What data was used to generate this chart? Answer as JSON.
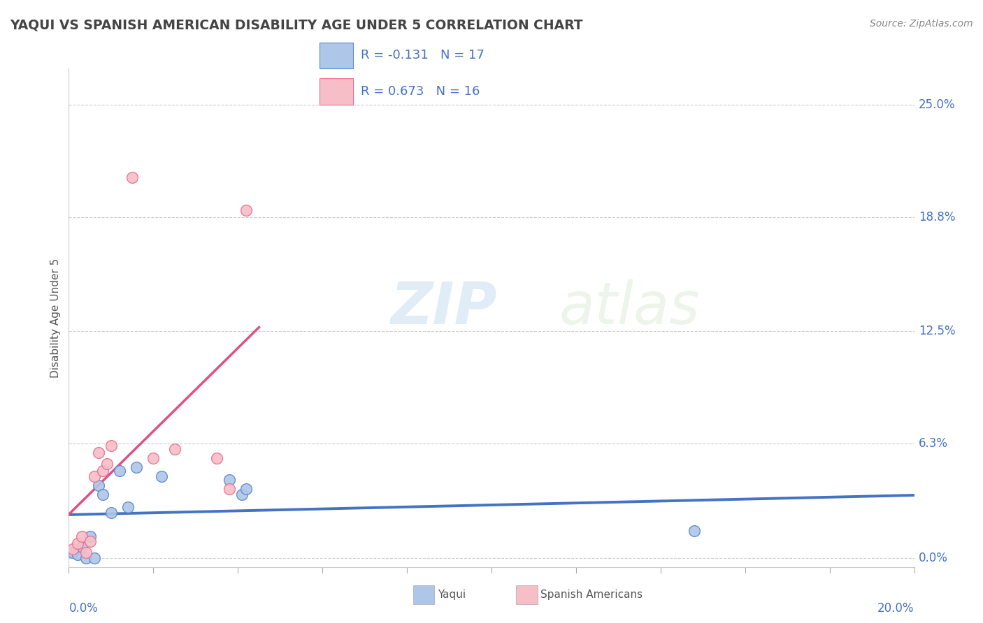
{
  "title": "YAQUI VS SPANISH AMERICAN DISABILITY AGE UNDER 5 CORRELATION CHART",
  "source": "Source: ZipAtlas.com",
  "ylabel": "Disability Age Under 5",
  "ytick_labels": [
    "0.0%",
    "6.3%",
    "12.5%",
    "18.8%",
    "25.0%"
  ],
  "ytick_values": [
    0.0,
    6.3,
    12.5,
    18.8,
    25.0
  ],
  "xlim": [
    0.0,
    20.0
  ],
  "ylim": [
    -0.5,
    27.0
  ],
  "yaqui_color": "#aec6e8",
  "yaqui_edge_color": "#5b8ac8",
  "yaqui_line_color": "#4472c4",
  "spanish_color": "#f7bec8",
  "spanish_edge_color": "#e87090",
  "spanish_line_color": "#e05080",
  "R_yaqui": -0.131,
  "N_yaqui": 17,
  "R_spanish": 0.673,
  "N_spanish": 16,
  "watermark_zip": "ZIP",
  "watermark_atlas": "atlas",
  "yaqui_x": [
    0.1,
    0.2,
    0.3,
    0.4,
    0.5,
    0.6,
    0.7,
    0.8,
    1.0,
    1.2,
    1.4,
    1.6,
    2.2,
    3.8,
    4.1,
    4.2,
    14.8
  ],
  "yaqui_y": [
    0.3,
    0.2,
    0.6,
    0.0,
    1.2,
    0.0,
    4.0,
    3.5,
    2.5,
    4.8,
    2.8,
    5.0,
    4.5,
    4.3,
    3.5,
    3.8,
    1.5
  ],
  "spanish_x": [
    0.1,
    0.2,
    0.3,
    0.4,
    0.5,
    0.6,
    0.7,
    0.8,
    0.9,
    1.0,
    1.5,
    2.0,
    2.5,
    3.5,
    3.8,
    4.2
  ],
  "spanish_y": [
    0.5,
    0.8,
    1.2,
    0.3,
    0.9,
    4.5,
    5.8,
    4.8,
    5.2,
    6.2,
    21.0,
    5.5,
    6.0,
    5.5,
    3.8,
    19.2
  ],
  "spanish_outlier_x": 1.5,
  "spanish_outlier_y": 21.0,
  "spanish_outlier2_x": 4.2,
  "spanish_outlier2_y": 19.2,
  "background_color": "#ffffff",
  "grid_color": "#cccccc",
  "title_color": "#444444",
  "axis_label_color": "#4472c4",
  "marker_size": 130
}
